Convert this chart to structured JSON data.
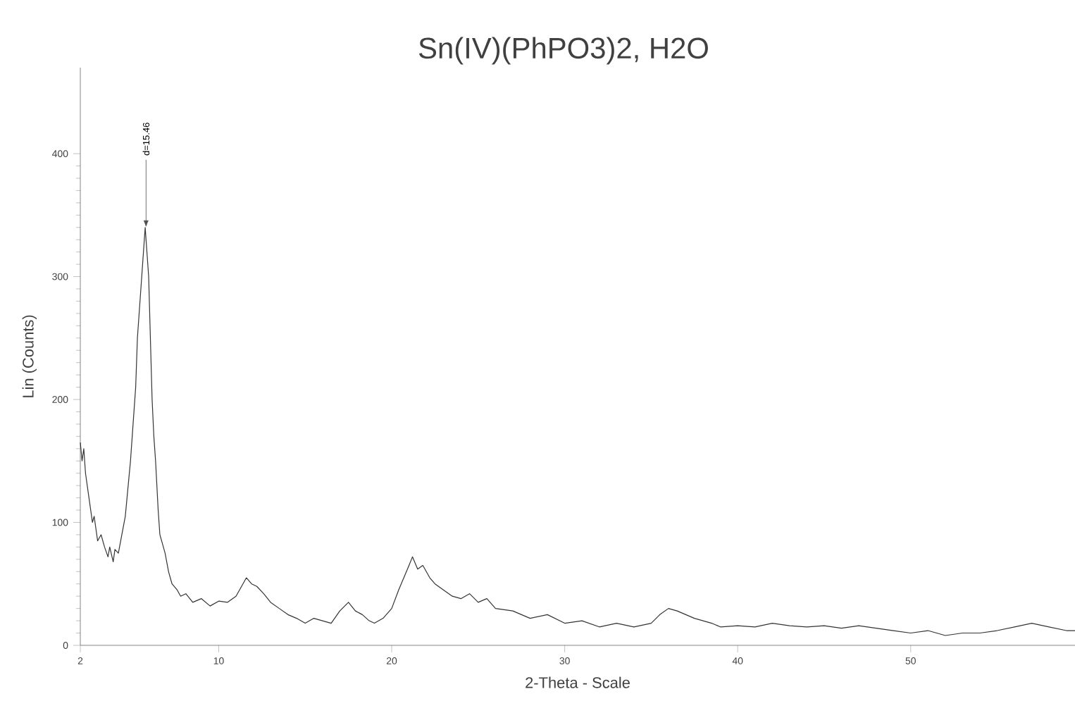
{
  "chart_data": {
    "type": "line",
    "title": "Sn(IV)(PhPO3)2, H2O",
    "xlabel": "2-Theta - Scale",
    "ylabel": "Lin (Counts)",
    "xlim": [
      2,
      59.5
    ],
    "ylim": [
      0,
      470
    ],
    "xticks": [
      2,
      10,
      20,
      30,
      40,
      50
    ],
    "yticks": [
      0,
      100,
      200,
      300,
      400
    ],
    "marker": "none",
    "color": "#333333",
    "annotations": [
      {
        "text": "d=15.46",
        "x": 5.8,
        "y": 340
      }
    ],
    "x": [
      2,
      2.1,
      2.2,
      2.3,
      2.5,
      2.7,
      2.8,
      3.0,
      3.2,
      3.4,
      3.6,
      3.7,
      3.9,
      4.0,
      4.2,
      4.4,
      4.6,
      4.7,
      4.9,
      5.0,
      5.2,
      5.3,
      5.5,
      5.6,
      5.75,
      5.85,
      5.95,
      6.05,
      6.15,
      6.25,
      6.35,
      6.5,
      6.6,
      6.8,
      6.9,
      7.1,
      7.3,
      7.6,
      7.8,
      8.1,
      8.5,
      9.0,
      9.5,
      10.0,
      10.5,
      11.0,
      11.2,
      11.6,
      11.9,
      12.2,
      12.6,
      13.0,
      13.5,
      14.0,
      14.5,
      15.0,
      15.5,
      16.0,
      16.5,
      17.0,
      17.5,
      17.9,
      18.3,
      18.7,
      19.0,
      19.5,
      20.0,
      20.4,
      20.7,
      21.0,
      21.2,
      21.5,
      21.8,
      22.2,
      22.5,
      23.0,
      23.5,
      24.0,
      24.5,
      25.0,
      25.5,
      26.0,
      27.0,
      28.0,
      29.0,
      30.0,
      31.0,
      32.0,
      33.0,
      34.0,
      35.0,
      35.5,
      36.0,
      36.5,
      37.5,
      38.5,
      39.0,
      40.0,
      41.0,
      42.0,
      43.0,
      44.0,
      45.0,
      46.0,
      47.0,
      48.0,
      49.0,
      50.0,
      51.0,
      52.0,
      53.0,
      54.0,
      55.0,
      56.0,
      57.0,
      58.0,
      59.0,
      59.5
    ],
    "values": [
      165,
      150,
      160,
      140,
      120,
      100,
      105,
      85,
      90,
      80,
      72,
      80,
      68,
      78,
      75,
      90,
      105,
      120,
      150,
      170,
      210,
      250,
      290,
      310,
      340,
      320,
      300,
      250,
      200,
      170,
      150,
      110,
      90,
      80,
      75,
      60,
      50,
      45,
      40,
      42,
      35,
      38,
      32,
      36,
      35,
      40,
      45,
      55,
      50,
      48,
      42,
      35,
      30,
      25,
      22,
      18,
      22,
      20,
      18,
      28,
      35,
      28,
      25,
      20,
      18,
      22,
      30,
      45,
      55,
      65,
      72,
      62,
      65,
      55,
      50,
      45,
      40,
      38,
      42,
      35,
      38,
      30,
      28,
      22,
      25,
      18,
      20,
      15,
      18,
      15,
      18,
      25,
      30,
      28,
      22,
      18,
      15,
      16,
      15,
      18,
      16,
      15,
      16,
      14,
      16,
      14,
      12,
      10,
      12,
      8,
      10,
      10,
      12,
      15,
      18,
      15,
      12,
      12
    ]
  }
}
